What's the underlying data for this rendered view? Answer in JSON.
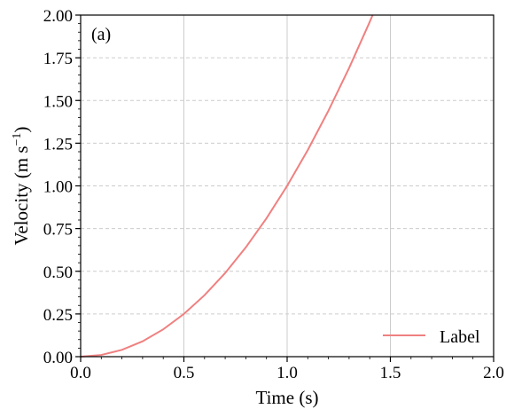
{
  "chart_data": {
    "type": "line",
    "panel_label": "(a)",
    "xlabel": "Time (s)",
    "ylabel": {
      "base": "Velocity (m s",
      "superscript": "−1",
      "close": ")"
    },
    "xlim": [
      0.0,
      2.0
    ],
    "ylim": [
      0.0,
      2.0
    ],
    "x_ticks": [
      0.0,
      0.5,
      1.0,
      1.5,
      2.0
    ],
    "x_tick_labels": [
      "0.0",
      "0.5",
      "1.0",
      "1.5",
      "2.0"
    ],
    "y_ticks": [
      0.0,
      0.25,
      0.5,
      0.75,
      1.0,
      1.25,
      1.5,
      1.75,
      2.0
    ],
    "y_tick_labels": [
      "0.00",
      "0.25",
      "0.50",
      "0.75",
      "1.00",
      "1.25",
      "1.50",
      "1.75",
      "2.00"
    ],
    "x_minor_step": 0.1,
    "y_minor_step": 0.05,
    "grid": true,
    "legend_position": "bottom-right",
    "series": [
      {
        "name": "Label",
        "color": "#f08080",
        "x": [
          0.0,
          0.1,
          0.2,
          0.3,
          0.4,
          0.5,
          0.6,
          0.7,
          0.8,
          0.9,
          1.0,
          1.1,
          1.2,
          1.3,
          1.4,
          1.414
        ],
        "y": [
          0.0,
          0.01,
          0.04,
          0.09,
          0.16,
          0.25,
          0.36,
          0.49,
          0.64,
          0.81,
          1.0,
          1.21,
          1.44,
          1.69,
          1.96,
          2.0
        ]
      }
    ]
  }
}
